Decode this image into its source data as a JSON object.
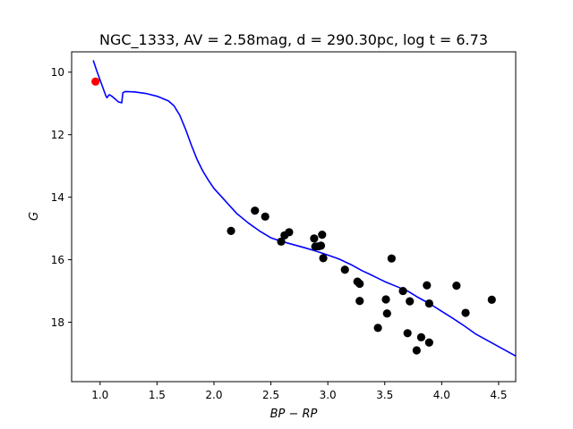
{
  "chart_data": {
    "type": "scatter",
    "title": "NGC_1333, AV = 2.58mag, d = 290.30pc, log t = 6.73",
    "xlabel": "BP − RP",
    "ylabel": "G",
    "xlim": [
      0.75,
      4.65
    ],
    "ylim": [
      19.9,
      9.35
    ],
    "y_inverted": true,
    "grid": false,
    "x_ticks": [
      1.0,
      1.5,
      2.0,
      2.5,
      3.0,
      3.5,
      4.0,
      4.5
    ],
    "x_tick_labels": [
      "1.0",
      "1.5",
      "2.0",
      "2.5",
      "3.0",
      "3.5",
      "4.0",
      "4.5"
    ],
    "y_ticks": [
      10,
      12,
      14,
      16,
      18
    ],
    "y_tick_labels": [
      "10",
      "12",
      "14",
      "16",
      "18"
    ],
    "colors": {
      "isochrone": "#0000ff",
      "members": "#000000",
      "highlight": "#ff0000",
      "frame": "#000000"
    },
    "isochrone": {
      "name": "isochrone",
      "x": [
        0.94,
        0.97,
        1.0,
        1.03,
        1.05,
        1.06,
        1.08,
        1.1,
        1.13,
        1.16,
        1.19,
        1.2,
        1.22,
        1.3,
        1.4,
        1.5,
        1.6,
        1.65,
        1.7,
        1.75,
        1.8,
        1.85,
        1.9,
        1.95,
        2.0,
        2.1,
        2.2,
        2.3,
        2.4,
        2.5,
        2.6,
        2.7,
        2.8,
        2.9,
        3.0,
        3.1,
        3.2,
        3.3,
        3.4,
        3.5,
        3.6,
        3.7,
        3.8,
        3.9,
        4.0,
        4.1,
        4.2,
        4.3,
        4.4,
        4.5,
        4.6,
        4.65
      ],
      "y": [
        9.62,
        9.95,
        10.25,
        10.55,
        10.75,
        10.82,
        10.72,
        10.76,
        10.85,
        10.95,
        10.98,
        10.66,
        10.62,
        10.63,
        10.68,
        10.77,
        10.92,
        11.08,
        11.38,
        11.82,
        12.32,
        12.78,
        13.15,
        13.45,
        13.72,
        14.12,
        14.52,
        14.82,
        15.08,
        15.3,
        15.42,
        15.52,
        15.62,
        15.73,
        15.85,
        15.98,
        16.15,
        16.35,
        16.52,
        16.7,
        16.85,
        17.0,
        17.22,
        17.42,
        17.65,
        17.88,
        18.12,
        18.38,
        18.58,
        18.78,
        18.98,
        19.08
      ]
    },
    "series": [
      {
        "name": "members",
        "x": [
          2.15,
          2.36,
          2.45,
          2.59,
          2.62,
          2.66,
          2.88,
          2.89,
          2.92,
          2.94,
          2.95,
          2.96,
          3.15,
          3.26,
          3.28,
          3.28,
          3.51,
          3.52,
          3.56,
          3.44,
          3.66,
          3.7,
          3.72,
          3.78,
          3.82,
          3.87,
          3.89,
          3.89,
          4.13,
          4.21,
          4.44
        ],
        "y": [
          15.08,
          14.43,
          14.62,
          15.42,
          15.22,
          15.12,
          15.32,
          15.58,
          15.57,
          15.55,
          15.2,
          15.95,
          16.32,
          16.7,
          16.77,
          17.32,
          17.27,
          17.72,
          15.96,
          18.18,
          17.0,
          18.35,
          17.33,
          18.9,
          18.48,
          16.82,
          17.4,
          18.65,
          16.83,
          17.7,
          17.28
        ]
      },
      {
        "name": "highlight",
        "x": [
          0.96
        ],
        "y": [
          10.3
        ]
      }
    ]
  }
}
